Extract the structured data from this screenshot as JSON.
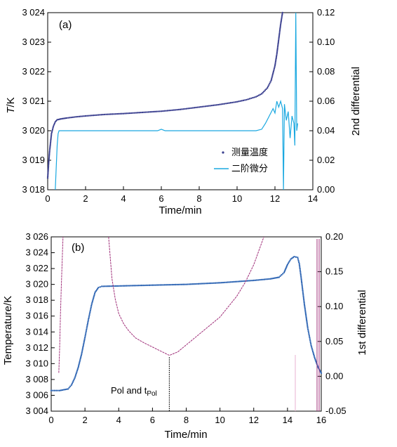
{
  "chart_data": [
    {
      "panel_label": "(a)",
      "type": "line",
      "xlabel": "Time/min",
      "ylabel": "T/K",
      "ylabel_italic": "T",
      "ylabel_unit": "/K",
      "y2label": "2nd differential",
      "xlim": [
        0,
        14
      ],
      "ylim": [
        3018,
        3024
      ],
      "y2lim": [
        0,
        0.12
      ],
      "xticks": [
        "0",
        "2",
        "4",
        "6",
        "8",
        "10",
        "12",
        "14"
      ],
      "yticks": [
        "3 018",
        "3 019",
        "3 020",
        "3 021",
        "3 022",
        "3 023",
        "3 024"
      ],
      "y2ticks": [
        "0.00",
        "0.02",
        "0.04",
        "0.06",
        "0.08",
        "0.10",
        "0.12"
      ],
      "legend_position": "bottom-right",
      "series": [
        {
          "name": "测量温度",
          "axis": "left",
          "style": "dots",
          "color": "#3a3f8f",
          "x": [
            0,
            0.05,
            0.1,
            0.15,
            0.2,
            0.3,
            0.4,
            0.5,
            0.7,
            1,
            1.5,
            2,
            3,
            4,
            5,
            6,
            7,
            8,
            9,
            10,
            10.5,
            11,
            11.3,
            11.6,
            11.8,
            12,
            12.1,
            12.2,
            12.3,
            12.4
          ],
          "y": [
            3018.4,
            3018.9,
            3019.3,
            3019.6,
            3019.9,
            3020.15,
            3020.3,
            3020.37,
            3020.4,
            3020.43,
            3020.47,
            3020.5,
            3020.55,
            3020.58,
            3020.62,
            3020.66,
            3020.72,
            3020.8,
            3020.88,
            3020.98,
            3021.05,
            3021.15,
            3021.25,
            3021.45,
            3021.7,
            3022.2,
            3022.6,
            3023.1,
            3023.6,
            3024.0
          ]
        },
        {
          "name": "二阶微分",
          "axis": "right",
          "style": "line",
          "color": "#1aa8e0",
          "x": [
            0.4,
            0.45,
            0.5,
            0.55,
            0.6,
            1,
            2,
            3,
            4,
            5,
            5.8,
            6,
            6.2,
            7,
            8,
            9,
            10,
            11,
            11.3,
            11.5,
            11.7,
            11.9,
            12.0,
            12.1,
            12.2,
            12.3,
            12.4,
            12.45,
            12.5,
            12.6,
            12.7,
            12.8,
            12.9,
            13.0,
            13.05,
            13.1,
            13.15,
            13.2
          ],
          "y": [
            0.0,
            0.015,
            0.03,
            0.038,
            0.04,
            0.04,
            0.04,
            0.04,
            0.04,
            0.04,
            0.04,
            0.041,
            0.04,
            0.04,
            0.04,
            0.04,
            0.04,
            0.04,
            0.041,
            0.045,
            0.05,
            0.055,
            0.052,
            0.06,
            0.056,
            0.06,
            0.055,
            0.0,
            0.058,
            0.047,
            0.053,
            0.035,
            0.05,
            0.045,
            0.03,
            0.12,
            0.04,
            0.045
          ]
        }
      ]
    },
    {
      "panel_label": "(b)",
      "type": "line",
      "xlabel": "Time/min",
      "ylabel": "Temperature/K",
      "y2label": "1st differential",
      "xlim": [
        0,
        16
      ],
      "ylim": [
        3004,
        3026
      ],
      "y2lim": [
        -0.05,
        0.2
      ],
      "xticks": [
        "0",
        "2",
        "4",
        "6",
        "8",
        "10",
        "12",
        "14",
        "16"
      ],
      "yticks": [
        "3 004",
        "3 006",
        "3 008",
        "3 010",
        "3 012",
        "3 014",
        "3 016",
        "3 018",
        "3 020",
        "3 022",
        "3 024",
        "3 026"
      ],
      "y2ticks": [
        "-0.05",
        "0.00",
        "0.05",
        "0.10",
        "0.15",
        "0.20"
      ],
      "annotation": {
        "text": "Pol and t",
        "subscript": "Pol",
        "x": 7.0,
        "y_top": 3010.8
      },
      "series": [
        {
          "name": "Temperature",
          "axis": "left",
          "style": "dots",
          "color": "#2f66b4",
          "x": [
            0,
            0.5,
            1,
            1.2,
            1.4,
            1.6,
            1.8,
            2,
            2.2,
            2.4,
            2.6,
            2.8,
            3,
            4,
            5,
            6,
            7,
            8,
            9,
            10,
            11,
            12,
            13,
            13.5,
            13.8,
            14,
            14.2,
            14.4,
            14.6,
            14.7,
            14.8,
            15,
            15.2,
            15.4,
            15.6,
            15.8,
            16
          ],
          "y": [
            3006.6,
            3006.6,
            3006.8,
            3007.3,
            3008.2,
            3009.5,
            3011.2,
            3013.3,
            3015.5,
            3017.5,
            3019,
            3019.6,
            3019.75,
            3019.8,
            3019.85,
            3019.9,
            3019.95,
            3020.0,
            3020.1,
            3020.2,
            3020.35,
            3020.5,
            3020.7,
            3020.9,
            3021.5,
            3022.5,
            3023.2,
            3023.5,
            3023.4,
            3022.6,
            3021,
            3017.5,
            3014.5,
            3012.3,
            3010.8,
            3009.6,
            3008.8
          ]
        },
        {
          "name": "1st differential",
          "axis": "right",
          "style": "line",
          "color": "#a0307a",
          "x": [
            0.45,
            0.5,
            0.55,
            0.6,
            0.65,
            0.7,
            3.4,
            3.5,
            3.6,
            3.8,
            4.0,
            4.3,
            4.6,
            5.0,
            5.5,
            6.0,
            6.5,
            7.0,
            7.5,
            8.0,
            8.5,
            9.0,
            9.5,
            10.0,
            10.5,
            11.0,
            11.5,
            12.0,
            12.3,
            12.6
          ],
          "y": [
            0.005,
            0.04,
            0.09,
            0.13,
            0.165,
            0.2,
            0.2,
            0.17,
            0.14,
            0.11,
            0.09,
            0.075,
            0.065,
            0.055,
            0.048,
            0.042,
            0.036,
            0.03,
            0.035,
            0.045,
            0.055,
            0.065,
            0.075,
            0.085,
            0.1,
            0.115,
            0.135,
            0.16,
            0.18,
            0.2
          ]
        }
      ]
    }
  ]
}
